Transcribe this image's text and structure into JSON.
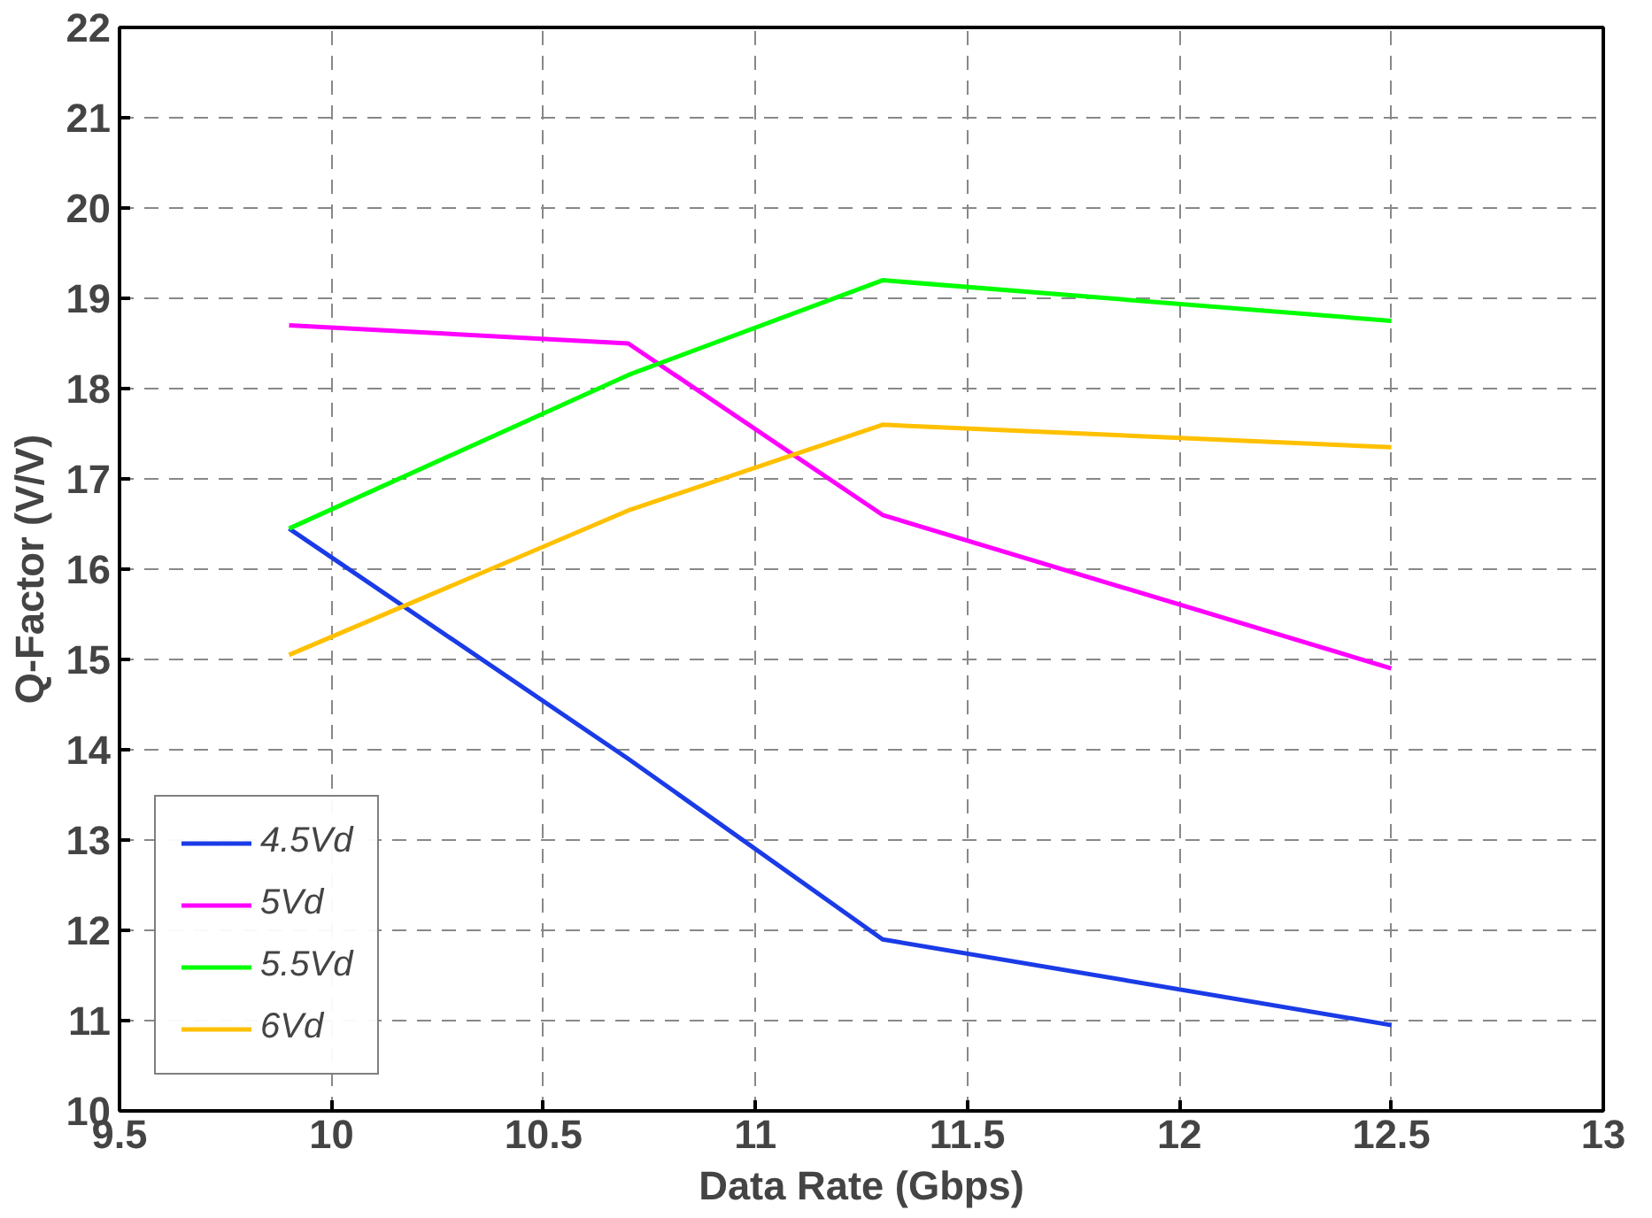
{
  "chart_data": {
    "type": "line",
    "xlabel": "Data Rate (Gbps)",
    "ylabel": "Q-Factor (V/V)",
    "x": [
      9.9,
      10.7,
      11.3,
      12.5
    ],
    "series": [
      {
        "name": "4.5Vd",
        "color": "#1a3be6",
        "values": [
          16.45,
          13.9,
          11.9,
          10.95
        ]
      },
      {
        "name": "5Vd",
        "color": "#ff00ff",
        "values": [
          18.7,
          18.5,
          16.6,
          14.9
        ]
      },
      {
        "name": "5.5Vd",
        "color": "#00ff00",
        "values": [
          16.45,
          18.15,
          19.2,
          18.75
        ]
      },
      {
        "name": "6Vd",
        "color": "#ffc000",
        "values": [
          15.05,
          16.65,
          17.6,
          17.35
        ]
      }
    ],
    "xlim": [
      9.5,
      13
    ],
    "ylim": [
      10,
      22
    ],
    "xticks": [
      9.5,
      10,
      10.5,
      11,
      11.5,
      12,
      12.5,
      13
    ],
    "yticks": [
      10,
      11,
      12,
      13,
      14,
      15,
      16,
      17,
      18,
      19,
      20,
      21,
      22
    ],
    "grid": true,
    "legend": "bottom left",
    "marker": "none",
    "line_style": "solid"
  }
}
